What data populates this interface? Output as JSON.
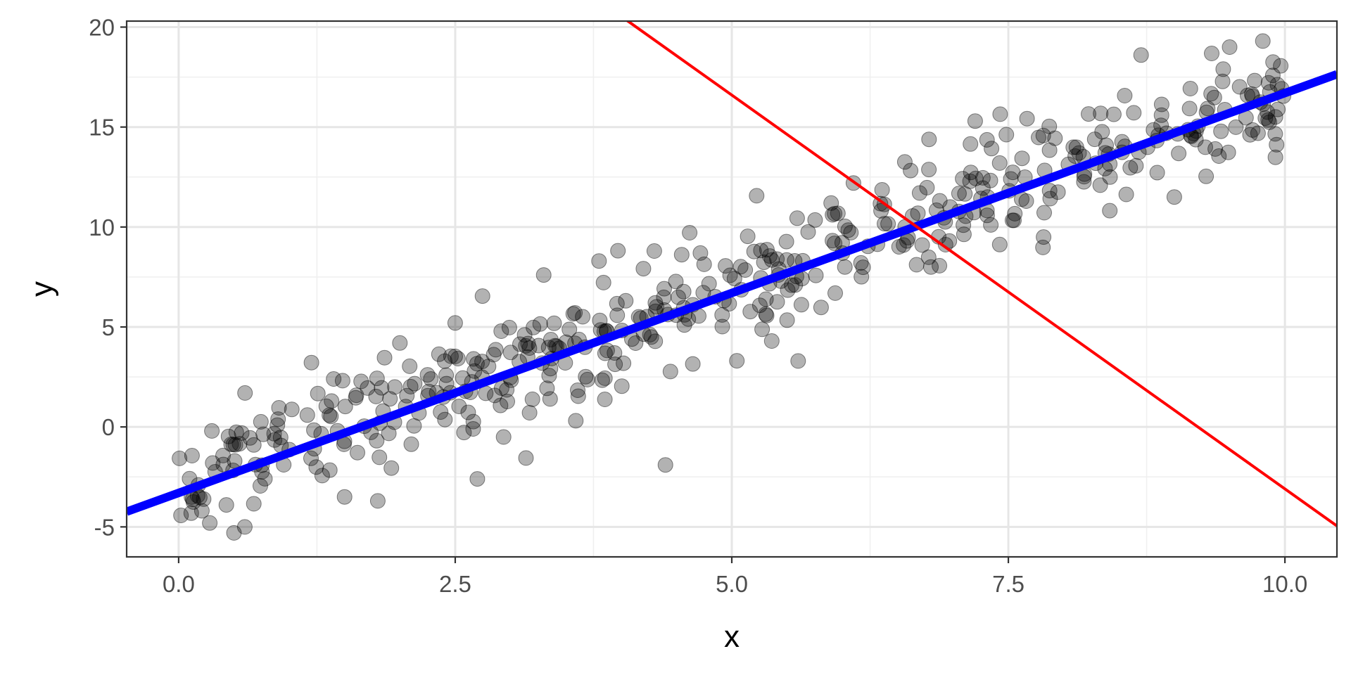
{
  "chart_data": {
    "type": "scatter",
    "title": "",
    "xlabel": "x",
    "ylabel": "y",
    "xlim": [
      -0.47,
      10.47
    ],
    "ylim": [
      -6.5,
      20.3
    ],
    "grid": true,
    "legend": "none",
    "x_ticks": [
      0,
      2.5,
      5,
      7.5,
      10
    ],
    "x_tick_labels": [
      "0.0",
      "2.5",
      "5.0",
      "7.5",
      "10.0"
    ],
    "y_ticks": [
      -5,
      0,
      5,
      10,
      15,
      20
    ],
    "y_tick_labels": [
      "-5",
      "0",
      "5",
      "10",
      "15",
      "20"
    ],
    "scatter": {
      "n_points": 500,
      "x_range": [
        0,
        10
      ],
      "trend_intercept": -3,
      "trend_slope": 2,
      "noise_sd": 1.5,
      "color": "#000000",
      "opacity": 0.3,
      "sample_points": [
        [
          0.3,
          -0.2
        ],
        [
          0.5,
          -5.3
        ],
        [
          0.6,
          1.7
        ],
        [
          1.5,
          -3.5
        ],
        [
          1.8,
          -3.7
        ],
        [
          2.0,
          4.2
        ],
        [
          2.5,
          5.2
        ],
        [
          2.7,
          -2.6
        ],
        [
          3.3,
          7.6
        ],
        [
          3.8,
          8.3
        ],
        [
          4.4,
          -1.9
        ],
        [
          4.3,
          8.8
        ],
        [
          5.6,
          3.3
        ],
        [
          6.1,
          12.2
        ],
        [
          7.2,
          15.3
        ],
        [
          8.7,
          18.6
        ],
        [
          9.5,
          19.0
        ],
        [
          9.8,
          19.3
        ],
        [
          9.0,
          11.5
        ],
        [
          6.8,
          8.0
        ]
      ]
    },
    "lines": [
      {
        "intercept": -3.3,
        "slope": 2.0,
        "color": "#0000FF",
        "width": 12
      },
      {
        "intercept": 36.3,
        "slope": -3.94,
        "color": "#FF0000",
        "width": 4
      }
    ]
  }
}
